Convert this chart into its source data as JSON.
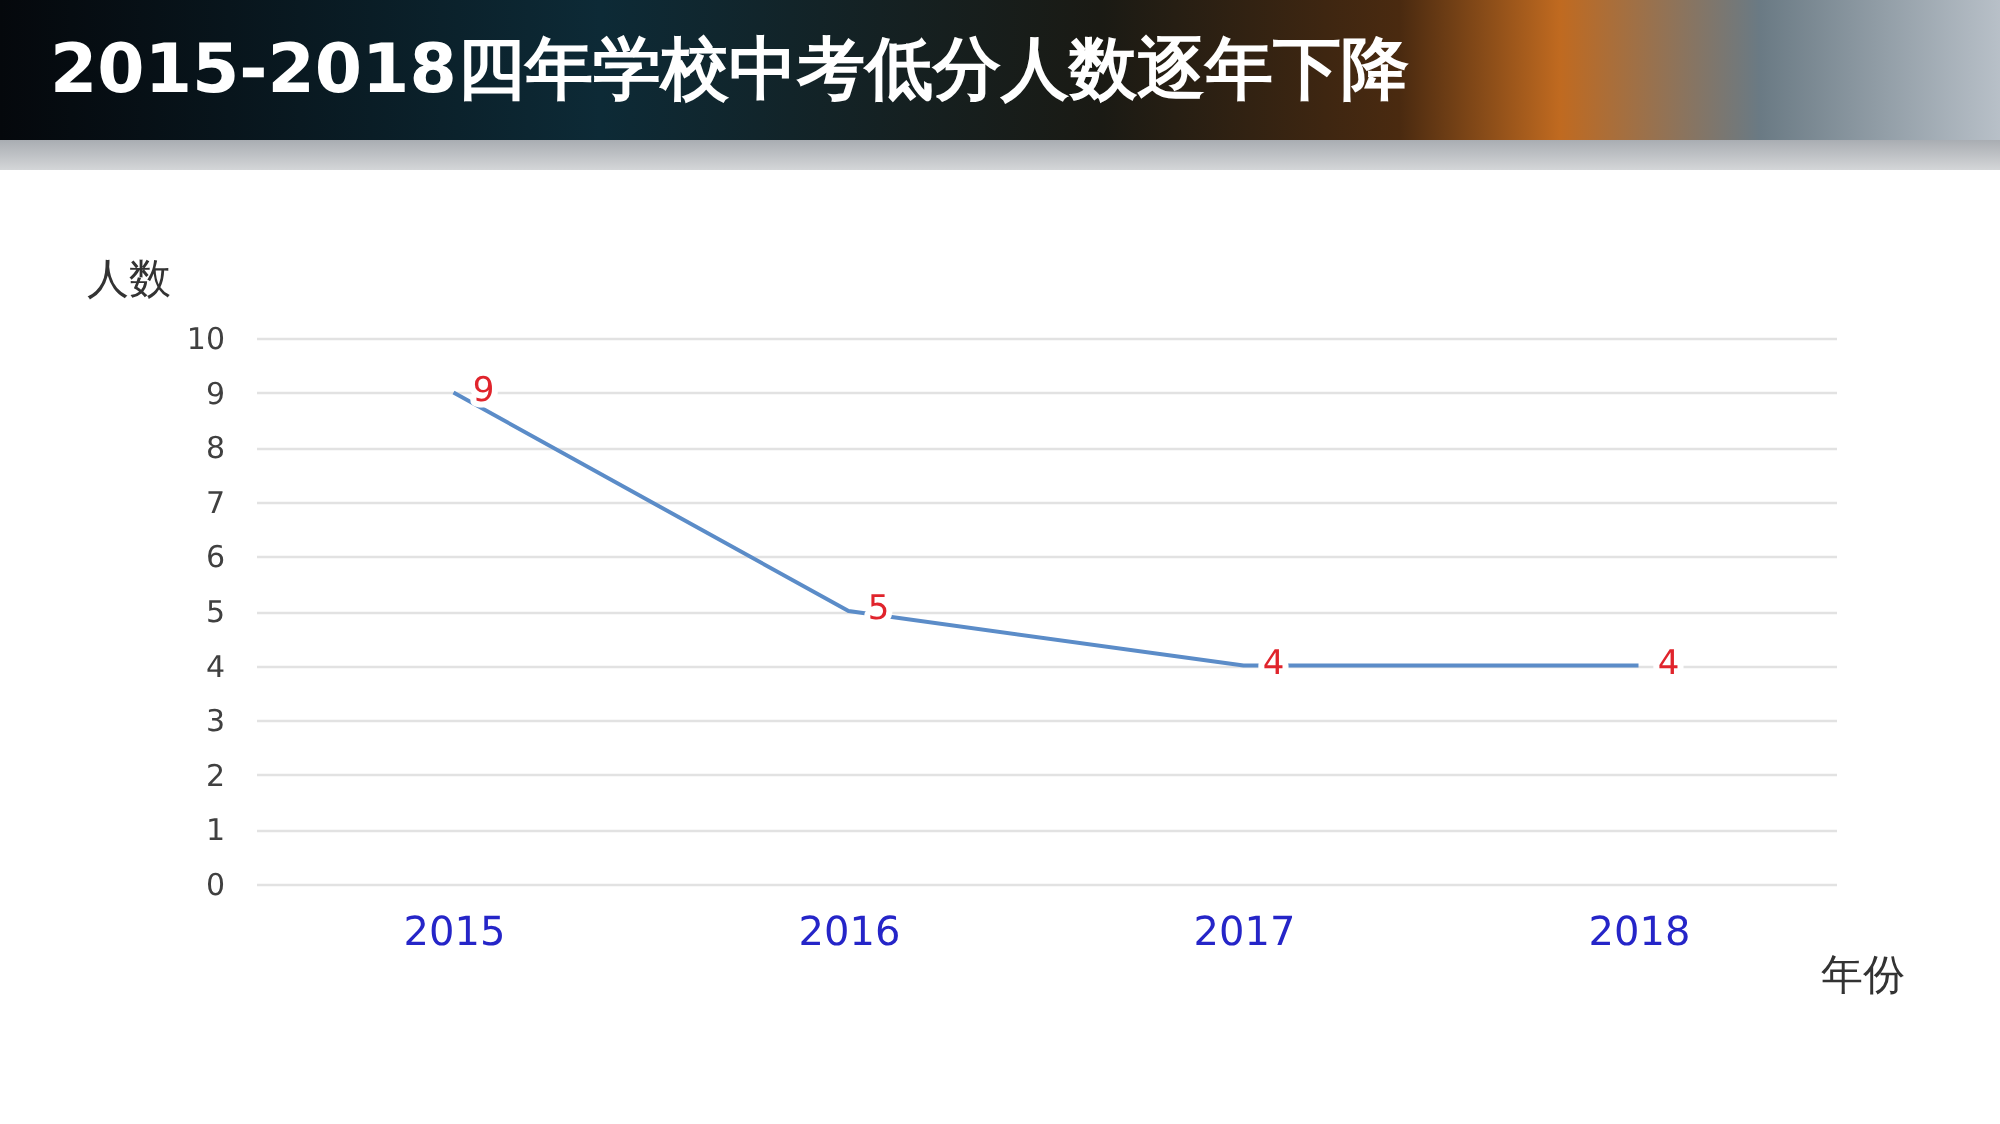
{
  "chart_data": {
    "type": "line",
    "title": "2015-2018四年学校中考低分人数逐年下降",
    "xlabel": "年份",
    "ylabel": "人数",
    "categories": [
      "2015",
      "2016",
      "2017",
      "2018"
    ],
    "series": [
      {
        "color": "#5b8cc8",
        "values": [
          9,
          5,
          4,
          4
        ]
      }
    ],
    "ylim": [
      0,
      10
    ],
    "yticks": [
      0,
      1,
      2,
      3,
      4,
      5,
      6,
      7,
      8,
      9,
      10
    ],
    "grid": "y",
    "data_labels": true,
    "legend": false
  }
}
